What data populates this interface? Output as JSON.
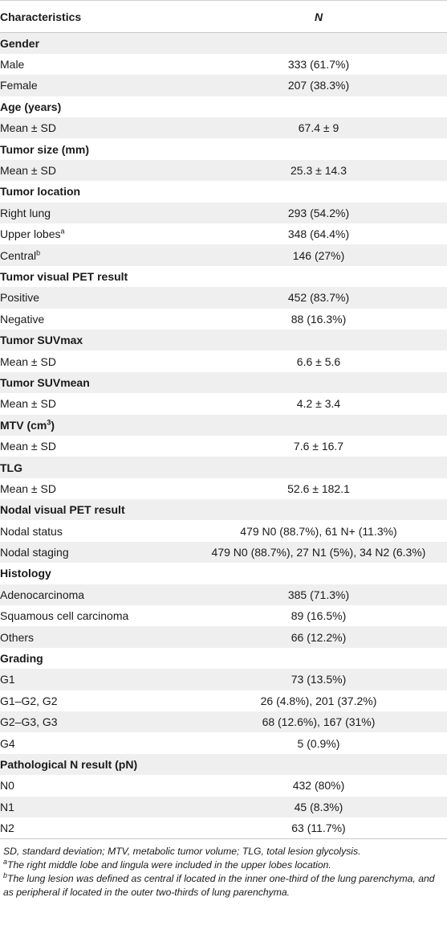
{
  "header": {
    "characteristics": "Characteristics",
    "n": "N"
  },
  "rows": [
    {
      "label": "Gender",
      "value": "",
      "section": true
    },
    {
      "label": "Male",
      "value": "333 (61.7%)"
    },
    {
      "label": "Female",
      "value": "207 (38.3%)"
    },
    {
      "label": "Age (years)",
      "value": "",
      "section": true
    },
    {
      "label": "Mean ± SD",
      "value": "67.4 ± 9"
    },
    {
      "label": "Tumor size (mm)",
      "value": "",
      "section": true
    },
    {
      "label": "Mean ± SD",
      "value": "25.3 ± 14.3"
    },
    {
      "label": "Tumor location",
      "value": "",
      "section": true
    },
    {
      "label": "Right lung",
      "value": "293 (54.2%)"
    },
    {
      "label": "Upper lobes",
      "sup": "a",
      "value": "348 (64.4%)"
    },
    {
      "label": "Central",
      "sup": "b",
      "value": "146 (27%)"
    },
    {
      "label": "Tumor visual PET result",
      "value": "",
      "section": true
    },
    {
      "label": "Positive",
      "value": "452 (83.7%)"
    },
    {
      "label": "Negative",
      "value": "88 (16.3%)"
    },
    {
      "label": "Tumor SUVmax",
      "value": "",
      "section": true
    },
    {
      "label": "Mean ± SD",
      "value": "6.6 ± 5.6"
    },
    {
      "label": "Tumor SUVmean",
      "value": "",
      "section": true
    },
    {
      "label": "Mean ± SD",
      "value": "4.2 ± 3.4"
    },
    {
      "label": "MTV (cm",
      "sup": "3",
      "label_suffix": ")",
      "value": "",
      "section": true
    },
    {
      "label": "Mean ± SD",
      "value": "7.6 ± 16.7"
    },
    {
      "label": "TLG",
      "value": "",
      "section": true
    },
    {
      "label": "Mean ± SD",
      "value": "52.6 ± 182.1"
    },
    {
      "label": "Nodal visual PET result",
      "value": "",
      "section": true
    },
    {
      "label": "Nodal status",
      "value": "479 N0 (88.7%), 61 N+ (11.3%)"
    },
    {
      "label": "Nodal staging",
      "value": "479 N0 (88.7%), 27 N1 (5%), 34 N2 (6.3%)"
    },
    {
      "label": "Histology",
      "value": "",
      "section": true
    },
    {
      "label": "Adenocarcinoma",
      "value": "385 (71.3%)"
    },
    {
      "label": "Squamous cell carcinoma",
      "value": "89 (16.5%)"
    },
    {
      "label": "Others",
      "value": "66 (12.2%)"
    },
    {
      "label": "Grading",
      "value": "",
      "section": true
    },
    {
      "label": "G1",
      "value": "73 (13.5%)"
    },
    {
      "label": "G1–G2, G2",
      "value": "26 (4.8%), 201 (37.2%)"
    },
    {
      "label": "G2–G3, G3",
      "value": "68 (12.6%), 167 (31%)"
    },
    {
      "label": "G4",
      "value": "5 (0.9%)"
    },
    {
      "label": "Pathological N result (pN)",
      "value": "",
      "section": true
    },
    {
      "label": "N0",
      "value": "432 (80%)"
    },
    {
      "label": "N1",
      "value": "45 (8.3%)"
    },
    {
      "label": "N2",
      "value": "63 (11.7%)"
    }
  ],
  "footnotes": {
    "abbrev": "SD, standard deviation; MTV, metabolic tumor volume; TLG, total lesion glycolysis.",
    "a_mark": "a",
    "a_text": "The right middle lobe and lingula were included in the upper lobes location.",
    "b_mark": "b",
    "b_text": "The lung lesion was defined as central if located in the inner one-third of the lung parenchyma, and as peripheral if located in the outer two-thirds of lung parenchyma."
  }
}
